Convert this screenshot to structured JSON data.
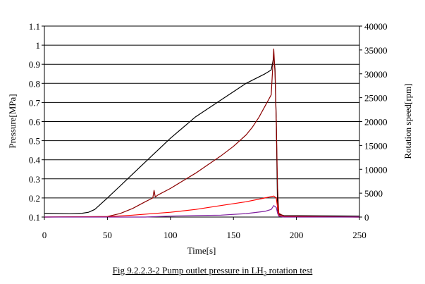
{
  "chart_data": {
    "type": "line",
    "title": "",
    "xlabel": "Time[s]",
    "ylabel_left": "Pressure[MPa]",
    "ylabel_right": "Rotation speed[rpm]",
    "xlim": [
      0,
      250
    ],
    "ylim_left": [
      0.1,
      1.1
    ],
    "ylim_right": [
      0,
      40000
    ],
    "x_ticks": [
      "0",
      "50",
      "100",
      "150",
      "200",
      "250"
    ],
    "y_left_ticks": [
      "0.1",
      "0.2",
      "0.3",
      "0.4",
      "0.5",
      "0.6",
      "0.7",
      "0.8",
      "0.9",
      "1",
      "1.1"
    ],
    "y_right_ticks": [
      "0",
      "5000",
      "10000",
      "15000",
      "20000",
      "25000",
      "30000",
      "35000",
      "40000"
    ],
    "grid": "horizontal",
    "legend": "none",
    "series": [
      {
        "axis": "right",
        "color": "#000000",
        "x": [
          0,
          20,
          30,
          35,
          40,
          50,
          60,
          80,
          100,
          120,
          140,
          160,
          175,
          180,
          182,
          183,
          184,
          185,
          186,
          190,
          250
        ],
        "y": [
          800,
          700,
          800,
          1000,
          1600,
          4000,
          6500,
          11500,
          16500,
          21000,
          24500,
          28000,
          30000,
          30800,
          33500,
          31000,
          20000,
          1500,
          600,
          300,
          200
        ]
      },
      {
        "axis": "left",
        "color": "#8b0000",
        "x": [
          0,
          50,
          60,
          70,
          80,
          86,
          87,
          88,
          90,
          100,
          110,
          120,
          130,
          140,
          150,
          160,
          165,
          170,
          175,
          180,
          182,
          183,
          184,
          185,
          186,
          190,
          250
        ],
        "y": [
          0.1,
          0.103,
          0.118,
          0.145,
          0.18,
          0.2,
          0.24,
          0.205,
          0.215,
          0.25,
          0.29,
          0.33,
          0.375,
          0.42,
          0.47,
          0.53,
          0.57,
          0.62,
          0.68,
          0.74,
          0.98,
          0.85,
          0.6,
          0.25,
          0.12,
          0.105,
          0.1
        ]
      },
      {
        "axis": "left",
        "color": "#ff0000",
        "x": [
          0,
          50,
          70,
          100,
          120,
          140,
          160,
          175,
          182,
          184,
          185,
          186,
          190,
          250
        ],
        "y": [
          0.1,
          0.102,
          0.11,
          0.125,
          0.14,
          0.16,
          0.18,
          0.2,
          0.21,
          0.2,
          0.15,
          0.11,
          0.102,
          0.1
        ]
      },
      {
        "axis": "left",
        "color": "#7f1f9f",
        "x": [
          0,
          80,
          100,
          120,
          140,
          160,
          175,
          180,
          182,
          184,
          185,
          186,
          190,
          250
        ],
        "y": [
          0.1,
          0.1,
          0.105,
          0.108,
          0.11,
          0.118,
          0.13,
          0.14,
          0.16,
          0.15,
          0.12,
          0.105,
          0.1,
          0.1
        ]
      }
    ]
  },
  "caption": {
    "prefix": "Fig 9.2.2.3-2 Pump outlet pressure in LH",
    "sub": "2",
    "suffix": " rotation test"
  }
}
